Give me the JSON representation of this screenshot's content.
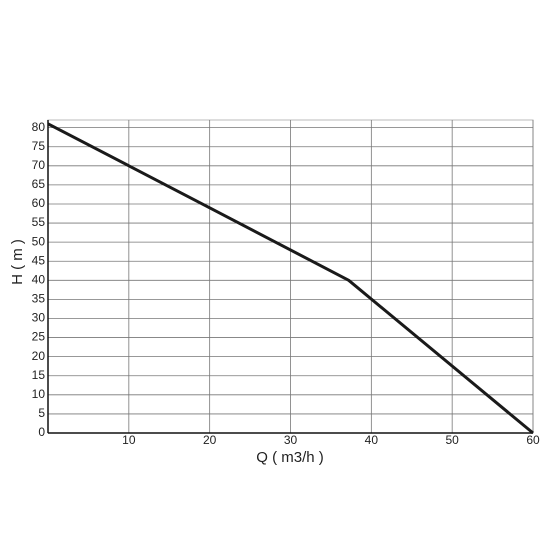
{
  "chart_data": {
    "type": "line",
    "x_label": "Q ( m3/h )",
    "y_label": "H ( m )",
    "x": [
      0,
      10,
      20,
      37.2,
      60
    ],
    "values": [
      81,
      70,
      59,
      40,
      0
    ],
    "color": "#1a1a1a",
    "xlim": [
      0,
      60
    ],
    "xticks": [
      10,
      20,
      30,
      40,
      50,
      60
    ],
    "ylim": [
      0,
      82
    ],
    "yticks": [
      0,
      5,
      10,
      15,
      20,
      25,
      30,
      35,
      40,
      45,
      50,
      55,
      60,
      65,
      70,
      75,
      80
    ],
    "grid": true
  }
}
